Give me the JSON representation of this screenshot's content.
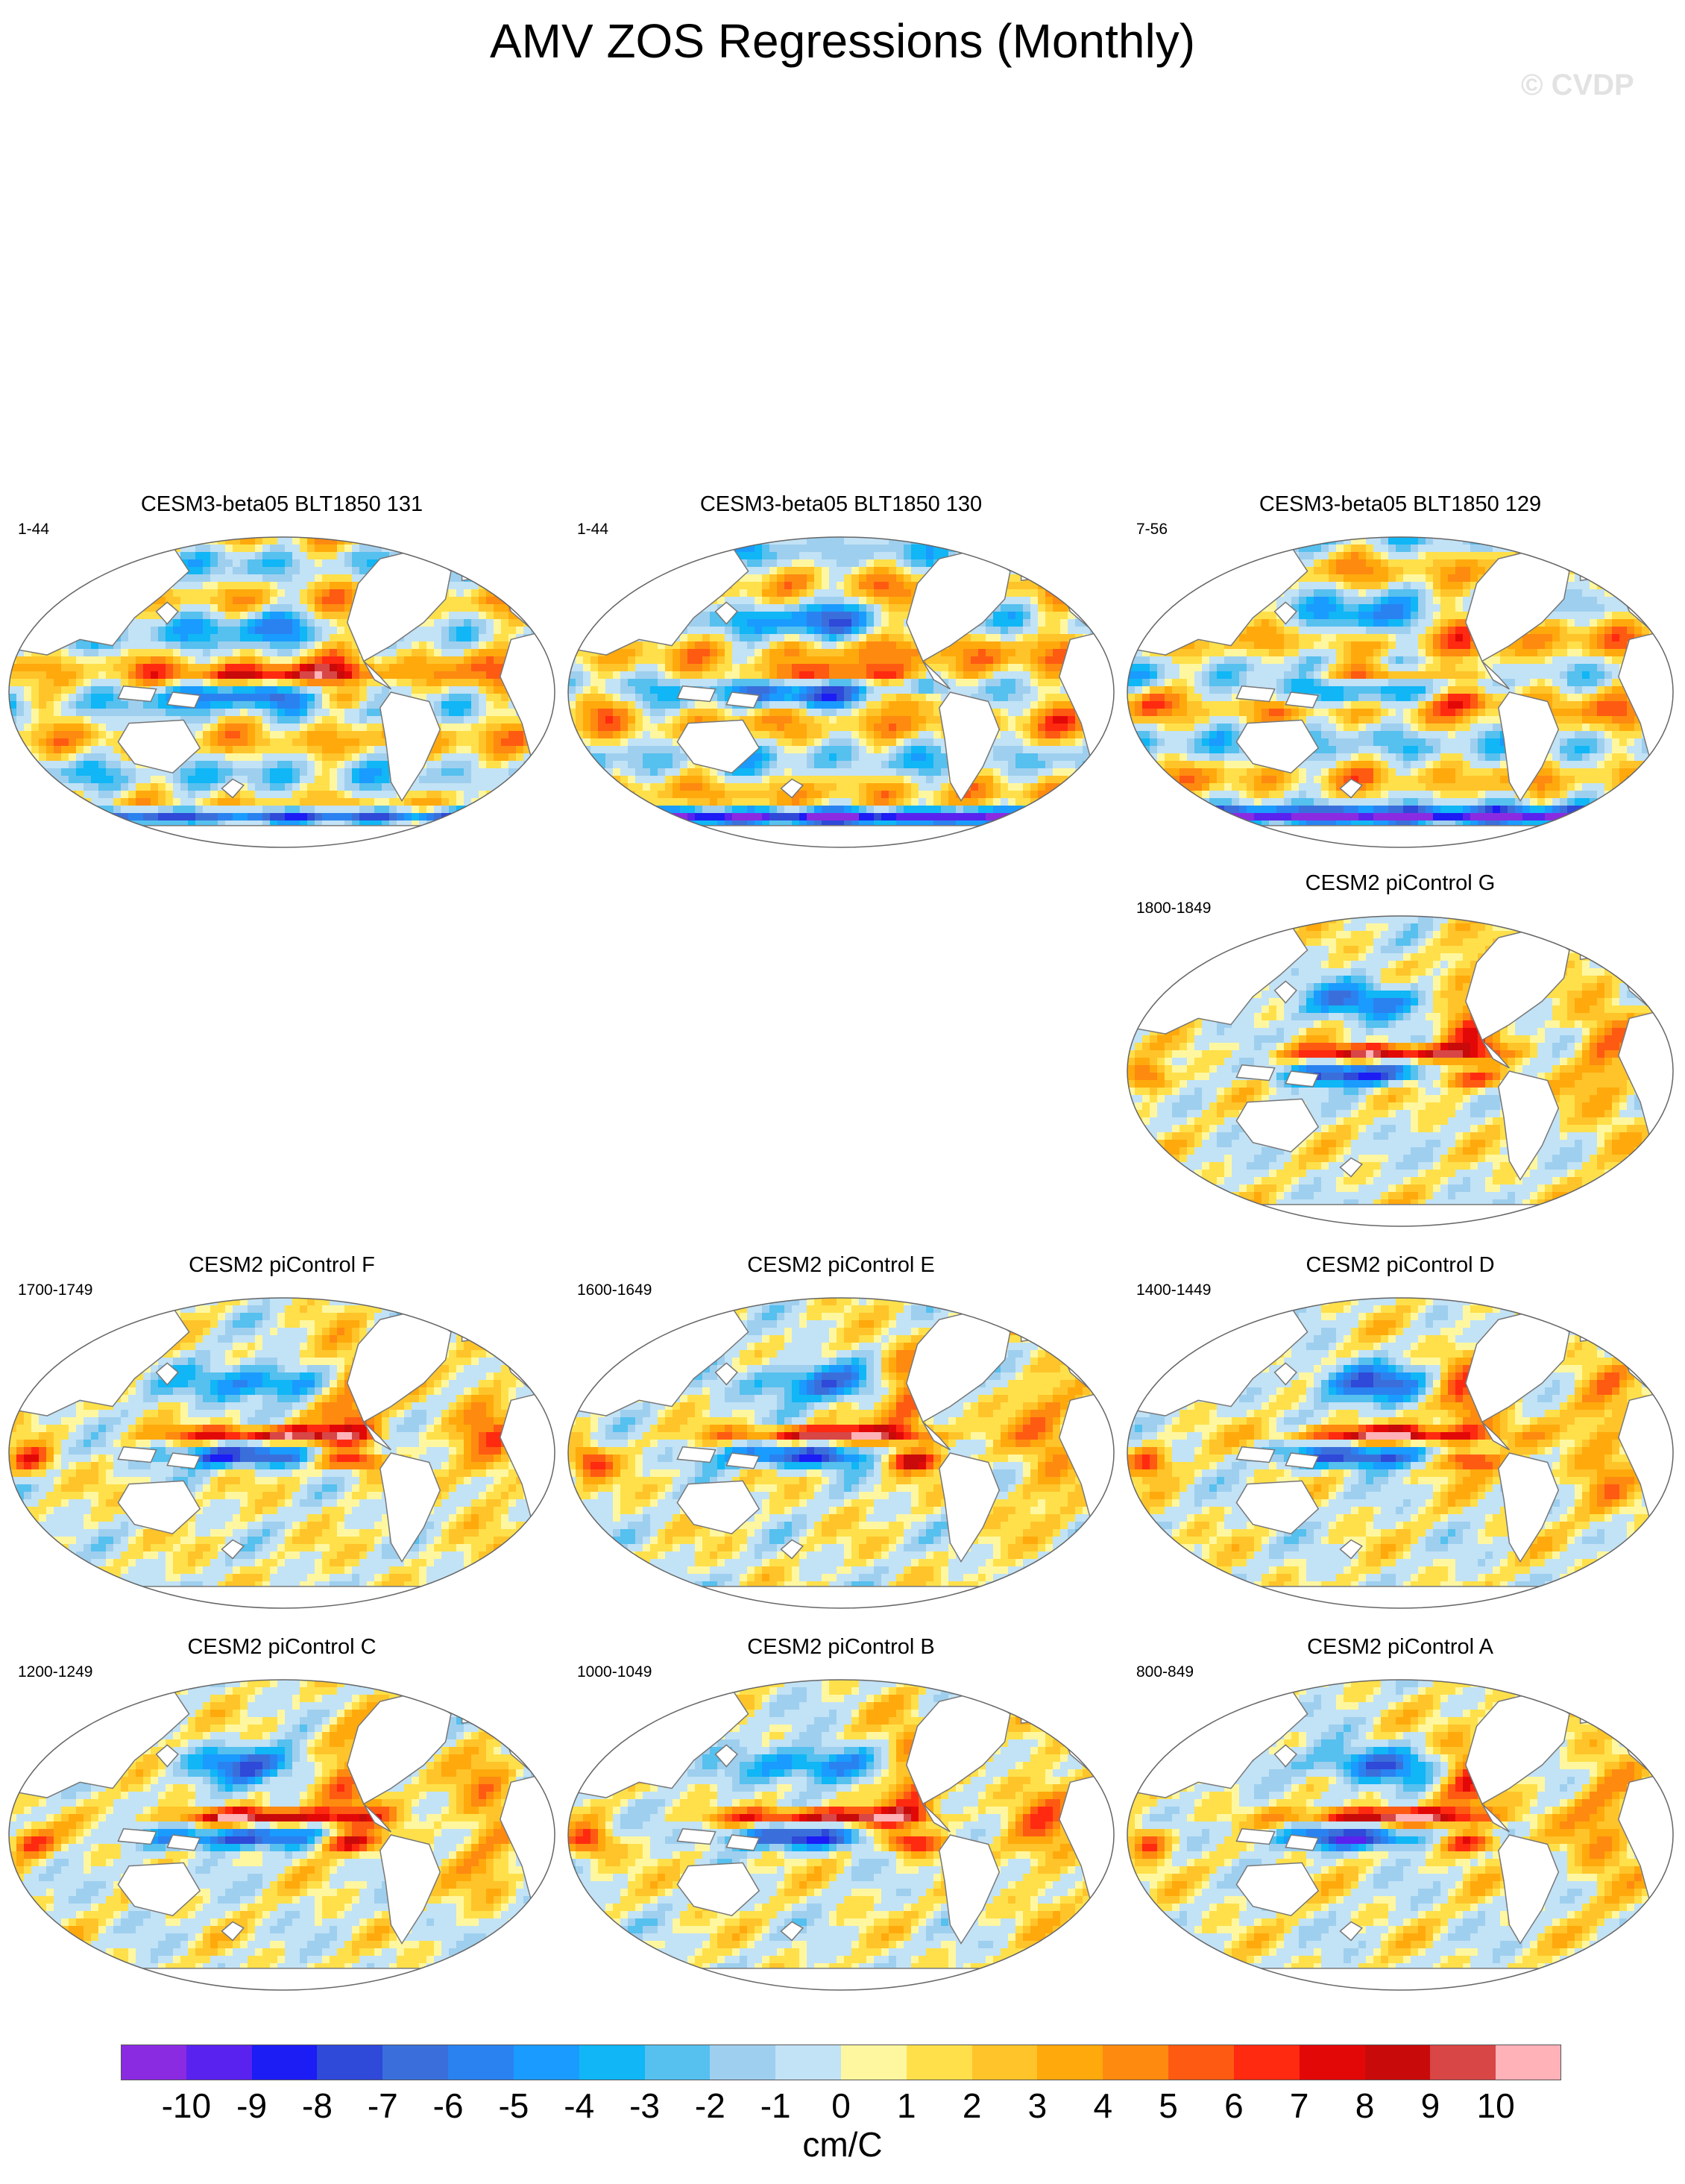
{
  "title": "AMV ZOS Regressions (Monthly)",
  "watermark": "© CVDP",
  "panels": [
    {
      "label": "CESM3-beta05 BLT1850 131",
      "years": "1-44"
    },
    {
      "label": "CESM3-beta05 BLT1850 130",
      "years": "1-44"
    },
    {
      "label": "CESM3-beta05 BLT1850 129",
      "years": "7-56"
    },
    {
      "label": "CESM2 piControl G",
      "years": "1800-1849"
    },
    {
      "label": "CESM2 piControl F",
      "years": "1700-1749"
    },
    {
      "label": "CESM2 piControl E",
      "years": "1600-1649"
    },
    {
      "label": "CESM2 piControl D",
      "years": "1400-1449"
    },
    {
      "label": "CESM2 piControl C",
      "years": "1200-1249"
    },
    {
      "label": "CESM2 piControl B",
      "years": "1000-1049"
    },
    {
      "label": "CESM2 piControl A",
      "years": "800-849"
    }
  ],
  "colorbar": {
    "units": "cm/C",
    "labels": [
      "-10",
      "-9",
      "-8",
      "-7",
      "-6",
      "-5",
      "-4",
      "-3",
      "-2",
      "-1",
      "0",
      "1",
      "2",
      "3",
      "4",
      "5",
      "6",
      "7",
      "8",
      "9",
      "10"
    ],
    "colors": [
      "#8a2be2",
      "#5a22ee",
      "#1c1cf5",
      "#2f49d8",
      "#3a6fdb",
      "#2a82f0",
      "#1a9bff",
      "#10b6f5",
      "#56c0ef",
      "#9fcfee",
      "#c2e2f6",
      "#fff7a0",
      "#ffe04a",
      "#ffc42a",
      "#ffa90c",
      "#ff8a10",
      "#ff5a12",
      "#ff2a10",
      "#e30808",
      "#c80a0a",
      "#d84646",
      "#ffb2b8"
    ]
  }
}
